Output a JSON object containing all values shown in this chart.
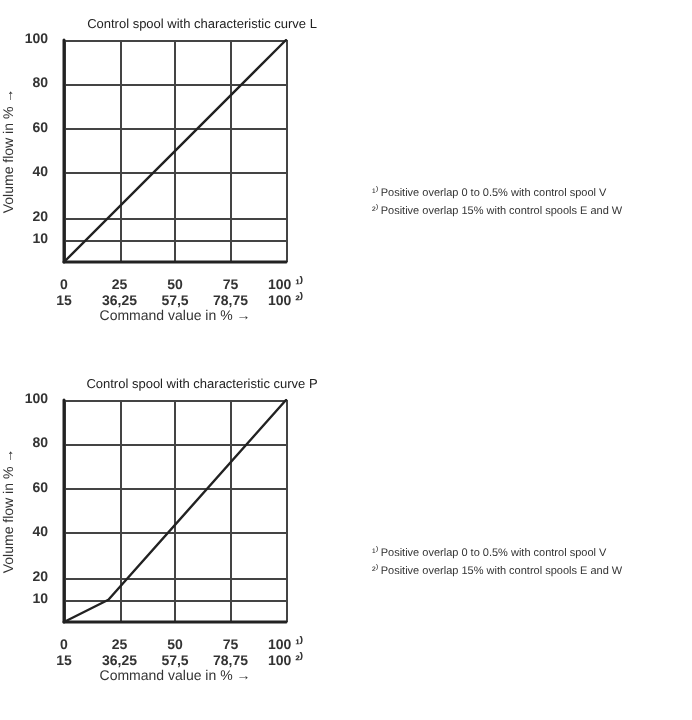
{
  "chart_data": [
    {
      "type": "line",
      "title": "Control spool with characteristic curve L",
      "xlabel": "Command value in % →",
      "ylabel": "Volume flow in % →",
      "series": [
        {
          "color": "#222222",
          "x": [
            0,
            100
          ],
          "values": [
            0,
            100
          ]
        }
      ],
      "xlim": [
        0,
        100
      ],
      "xticks": [
        0,
        25,
        50,
        75,
        {
          "value": 100,
          "label": "100 ¹⁾"
        }
      ],
      "x2lim": [
        15,
        100
      ],
      "x2ticks": [
        15,
        {
          "value": 36.25,
          "label": "36,25"
        },
        {
          "value": 57.5,
          "label": "57,5"
        },
        {
          "value": 78.75,
          "label": "78,75"
        },
        {
          "value": 100,
          "label": "100 ²⁾"
        }
      ],
      "ylim": [
        0,
        100
      ],
      "yticks": [
        10,
        20,
        40,
        60,
        80,
        100
      ],
      "grid": true,
      "marker": "none",
      "line_style": "solid",
      "annotations": [
        "¹⁾ Positive overlap 0 to 0.5% with control spool V",
        "²⁾ Positive overlap 15% with control spools E and W"
      ]
    },
    {
      "type": "line",
      "title": "Control spool with characteristic curve P",
      "xlabel": "Command value in % →",
      "ylabel": "Volume flow in % →",
      "series": [
        {
          "color": "#222222",
          "x": [
            0,
            20,
            100
          ],
          "values": [
            0,
            10,
            100
          ]
        }
      ],
      "xlim": [
        0,
        100
      ],
      "xticks": [
        0,
        25,
        50,
        75,
        {
          "value": 100,
          "label": "100 ¹⁾"
        }
      ],
      "x2lim": [
        15,
        100
      ],
      "x2ticks": [
        15,
        {
          "value": 36.25,
          "label": "36,25"
        },
        {
          "value": 57.5,
          "label": "57,5"
        },
        {
          "value": 78.75,
          "label": "78,75"
        },
        {
          "value": 100,
          "label": "100 ²⁾"
        }
      ],
      "ylim": [
        0,
        100
      ],
      "yticks": [
        10,
        20,
        40,
        60,
        80,
        100
      ],
      "grid": true,
      "marker": "none",
      "line_style": "solid",
      "annotations": [
        "¹⁾ Positive overlap 0 to 0.5% with control spool V",
        "²⁾ Positive overlap 15% with control spools E and W"
      ]
    }
  ]
}
